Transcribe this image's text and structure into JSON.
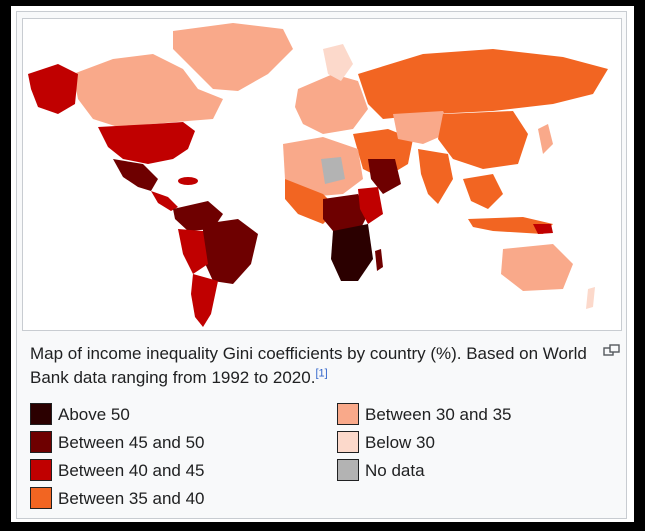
{
  "caption": {
    "text": "Map of income inequality Gini coefficients by country (%). Based on World Bank data ranging from 1992 to 2020.",
    "ref": "[1]"
  },
  "legend": [
    {
      "label": "Above 50",
      "color": "#2b0000"
    },
    {
      "label": "Between 45 and 50",
      "color": "#6e0000"
    },
    {
      "label": "Between 40 and 45",
      "color": "#c00000"
    },
    {
      "label": "Between 35 and 40",
      "color": "#f26522"
    },
    {
      "label": "Between 30 and 35",
      "color": "#f9a98a"
    },
    {
      "label": "Below 30",
      "color": "#fcd9cb"
    },
    {
      "label": "No data",
      "color": "#b3b3b3"
    }
  ],
  "icons": {
    "magnify": "magnify-icon"
  }
}
